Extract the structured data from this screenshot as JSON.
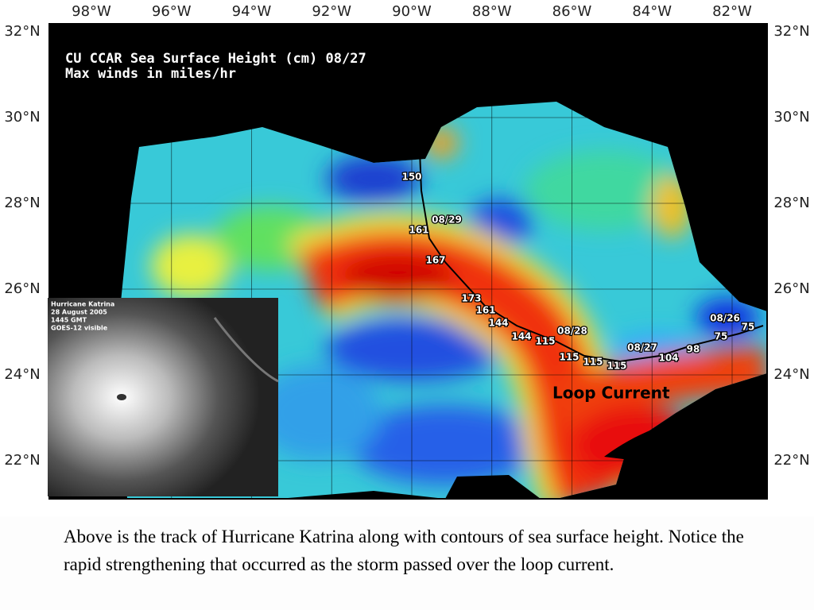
{
  "map": {
    "title": "CU CCAR Sea Surface Height (cm) 08/27",
    "subtitle": "Max winds in miles/hr",
    "lon_labels": [
      "98°W",
      "96°W",
      "94°W",
      "92°W",
      "90°W",
      "88°W",
      "86°W",
      "84°W",
      "82°W"
    ],
    "lat_labels": [
      "32°N",
      "30°N",
      "28°N",
      "26°N",
      "24°N",
      "22°N"
    ],
    "track_winds": [
      150,
      161,
      167,
      173,
      161,
      144,
      144,
      115,
      115,
      115,
      115,
      104,
      98,
      75,
      75
    ],
    "track_dates": [
      "08/29",
      "08/28",
      "08/27",
      "08/26"
    ],
    "annotation": "Loop Current"
  },
  "inset": {
    "lines": [
      "Hurricane Katrina",
      "28 August 2005",
      "1445 GMT",
      "GOES-12 visible"
    ]
  },
  "caption": "Above is the track of Hurricane Katrina along with contours of sea surface height.  Notice the rapid strengthening that occurred as the storm passed over the loop current."
}
